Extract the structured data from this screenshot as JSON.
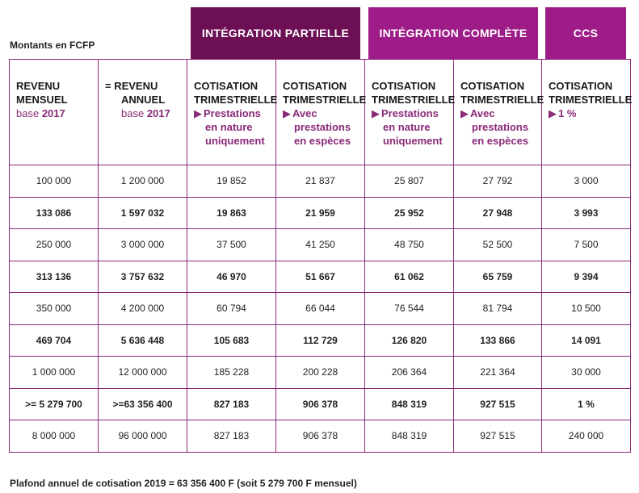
{
  "units_label": "Montants en FCFP",
  "groups": {
    "partial": "INTÉGRATION PARTIELLE",
    "complete": "INTÉGRATION COMPLÈTE",
    "ccs": "CCS"
  },
  "headers": {
    "col1": {
      "line1": "REVENU",
      "line2": "MENSUEL",
      "base_prefix": "base ",
      "base_year": "2017"
    },
    "col2": {
      "line1": "= REVENU",
      "line2": "ANNUEL",
      "base_prefix": "base ",
      "base_year": "2017"
    },
    "col3": {
      "line1": "COTISATION",
      "line2": "TRIMESTRIELLE",
      "option_l1": "Prestations",
      "option_l2": "en nature",
      "option_l3": "uniquement"
    },
    "col4": {
      "line1": "COTISATION",
      "line2": "TRIMESTRIELLE",
      "option_l1": "Avec",
      "option_l2": "prestations",
      "option_l3": "en espèces"
    },
    "col5": {
      "line1": "COTISATION",
      "line2": "TRIMESTRIELLE",
      "option_l1": "Prestations",
      "option_l2": "en nature",
      "option_l3": "uniquement"
    },
    "col6": {
      "line1": "COTISATION",
      "line2": "TRIMESTRIELLE",
      "option_l1": "Avec",
      "option_l2": "prestations",
      "option_l3": "en espèces"
    },
    "col7": {
      "line1": "COTISATION",
      "line2": "TRIMESTRIELLE",
      "option_l1": "1 %"
    }
  },
  "arrow_icon": "triangle-right-icon",
  "rows": [
    {
      "bold": false,
      "cells": [
        "100 000",
        "1 200 000",
        "19 852",
        "21 837",
        "25 807",
        "27 792",
        "3 000"
      ]
    },
    {
      "bold": true,
      "cells": [
        "133 086",
        "1 597 032",
        "19 863",
        "21 959",
        "25 952",
        "27 948",
        "3 993"
      ]
    },
    {
      "bold": false,
      "cells": [
        "250 000",
        "3 000 000",
        "37 500",
        "41 250",
        "48 750",
        "52 500",
        "7 500"
      ]
    },
    {
      "bold": true,
      "cells": [
        "313 136",
        "3 757 632",
        "46 970",
        "51 667",
        "61 062",
        "65 759",
        "9 394"
      ]
    },
    {
      "bold": false,
      "cells": [
        "350 000",
        "4 200 000",
        "60 794",
        "66 044",
        "76 544",
        "81 794",
        "10 500"
      ]
    },
    {
      "bold": true,
      "cells": [
        "469 704",
        "5 636 448",
        "105 683",
        "112 729",
        "126 820",
        "133 866",
        "14 091"
      ]
    },
    {
      "bold": false,
      "cells": [
        "1 000 000",
        "12 000 000",
        "185 228",
        "200 228",
        "206 364",
        "221 364",
        "30 000"
      ]
    },
    {
      "bold": true,
      "cells": [
        ">= 5 279 700",
        ">=63 356 400",
        "827 183",
        "906 378",
        "848 319",
        "927 515",
        "1 %"
      ]
    },
    {
      "bold": false,
      "cells": [
        "8 000 000",
        "96 000 000",
        "827 183",
        "906 378",
        "848 319",
        "927 515",
        "240 000"
      ]
    }
  ],
  "footer": "Plafond annuel de cotisation 2019 = 63 356 400 F (soit 5 279 700 F mensuel)"
}
